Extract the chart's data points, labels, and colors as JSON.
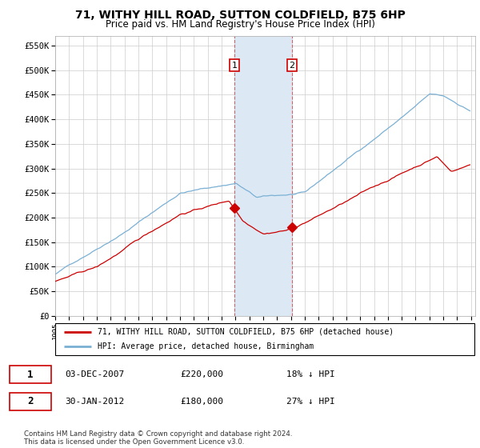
{
  "title": "71, WITHY HILL ROAD, SUTTON COLDFIELD, B75 6HP",
  "subtitle": "Price paid vs. HM Land Registry's House Price Index (HPI)",
  "ylim": [
    0,
    570000
  ],
  "xlim_start": 1995.0,
  "xlim_end": 2025.3,
  "legend_line1": "71, WITHY HILL ROAD, SUTTON COLDFIELD, B75 6HP (detached house)",
  "legend_line2": "HPI: Average price, detached house, Birmingham",
  "transaction1_label": "1",
  "transaction1_date": "03-DEC-2007",
  "transaction1_price": "£220,000",
  "transaction1_hpi": "18% ↓ HPI",
  "transaction2_label": "2",
  "transaction2_date": "30-JAN-2012",
  "transaction2_price": "£180,000",
  "transaction2_hpi": "27% ↓ HPI",
  "footer": "Contains HM Land Registry data © Crown copyright and database right 2024.\nThis data is licensed under the Open Government Licence v3.0.",
  "line_color_red": "#cc0000",
  "line_color_blue": "#7ab0d4",
  "shade_color": "#dce9f5",
  "marker1_x": 2007.92,
  "marker1_y": 220000,
  "marker2_x": 2012.08,
  "marker2_y": 180000
}
